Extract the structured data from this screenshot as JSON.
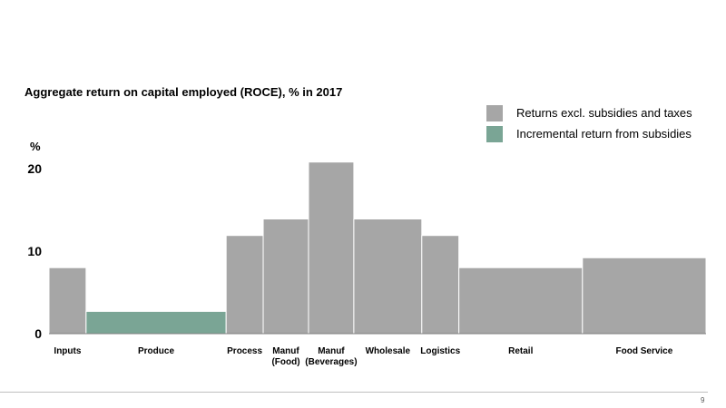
{
  "page": {
    "number": "9"
  },
  "chart_data": {
    "type": "bar",
    "title": "Aggregate return on capital employed (ROCE), % in 2017",
    "ylabel": "%",
    "ylim": [
      0,
      20
    ],
    "yticks": [
      "0",
      "10",
      "20"
    ],
    "legend": {
      "placement": "top-right",
      "entries": [
        {
          "name": "Returns excl. subsidies and taxes",
          "color": "#a6a6a6"
        },
        {
          "name": "Incremental return from subsidies",
          "color": "#7aa595"
        }
      ]
    },
    "categories": [
      {
        "label": "Inputs",
        "value": 8.0,
        "width_share": 0.9,
        "color": "#a6a6a6"
      },
      {
        "label": "Produce",
        "value": 2.7,
        "width_share": 3.4,
        "color": "#7aa595"
      },
      {
        "label": "Process",
        "value": 11.9,
        "width_share": 0.9,
        "color": "#a6a6a6"
      },
      {
        "label": "Manuf\n(Food)",
        "value": 13.9,
        "width_share": 1.1,
        "color": "#a6a6a6"
      },
      {
        "label": "Manuf\n(Beverages)",
        "value": 20.8,
        "width_share": 1.1,
        "color": "#a6a6a6"
      },
      {
        "label": "Wholesale",
        "value": 13.9,
        "width_share": 1.65,
        "color": "#a6a6a6"
      },
      {
        "label": "Logistics",
        "value": 11.9,
        "width_share": 0.9,
        "color": "#a6a6a6"
      },
      {
        "label": "Retail",
        "value": 8.0,
        "width_share": 3.0,
        "color": "#a6a6a6"
      },
      {
        "label": "Food Service",
        "value": 9.2,
        "width_share": 3.0,
        "color": "#a6a6a6"
      }
    ]
  }
}
